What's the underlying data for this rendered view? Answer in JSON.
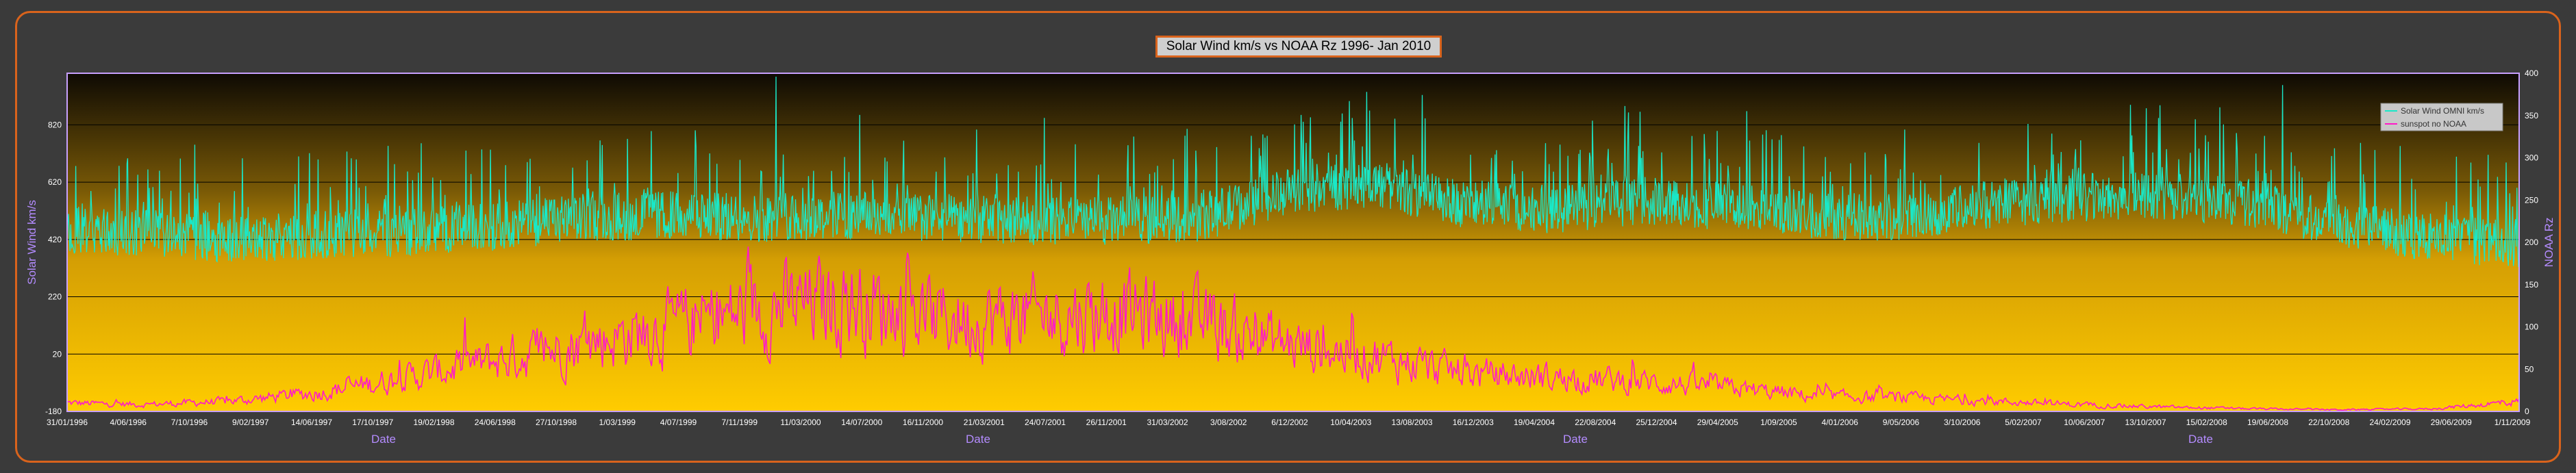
{
  "chart_data": {
    "type": "line",
    "title": "Solar Wind km/s vs NOAA Rz 1996- Jan 2010",
    "xlabel": "Date",
    "ylabel_left": "Solar Wind km/s",
    "ylabel_right": "NOAA Rz",
    "ylim_left": [
      -180,
      1000
    ],
    "ylim_right": [
      0,
      400
    ],
    "yticks_left": [
      "-180",
      "20",
      "220",
      "420",
      "620",
      "820"
    ],
    "yticks_right": [
      "0",
      "50",
      "100",
      "150",
      "200",
      "250",
      "300",
      "350",
      "400"
    ],
    "xticks": [
      "31/01/1996",
      "4/06/1996",
      "7/10/1996",
      "9/02/1997",
      "14/06/1997",
      "17/10/1997",
      "19/02/1998",
      "24/06/1998",
      "27/10/1998",
      "1/03/1999",
      "4/07/1999",
      "7/11/1999",
      "11/03/2000",
      "14/07/2000",
      "16/11/2000",
      "21/03/2001",
      "24/07/2001",
      "26/11/2001",
      "31/03/2002",
      "3/08/2002",
      "6/12/2002",
      "10/04/2003",
      "13/08/2003",
      "16/12/2003",
      "19/04/2004",
      "22/08/2004",
      "25/12/2004",
      "29/04/2005",
      "1/09/2005",
      "4/01/2006",
      "9/05/2006",
      "3/10/2006",
      "5/02/2007",
      "10/06/2007",
      "13/10/2007",
      "15/02/2008",
      "19/06/2008",
      "22/10/2008",
      "24/02/2009",
      "29/06/2009",
      "1/11/2009"
    ],
    "xlabel_positions_text": [
      "Date",
      "Date",
      "Date",
      "Date"
    ],
    "grid": true,
    "legend_position": "top-right",
    "series": [
      {
        "name": "Solar Wind OMNI km/s",
        "axis": "left",
        "color": "#19e8c8",
        "t": [
          1996.08,
          1996.5,
          1997.0,
          1997.5,
          1998.0,
          1998.5,
          1999.0,
          1999.5,
          2000.0,
          2000.5,
          2001.0,
          2001.5,
          2002.0,
          2002.5,
          2003.0,
          2003.5,
          2004.0,
          2004.5,
          2005.0,
          2005.5,
          2006.0,
          2006.5,
          2007.0,
          2007.5,
          2008.0,
          2008.5,
          2009.0,
          2009.5,
          2010.0
        ],
        "values": [
          430,
          420,
          400,
          410,
          420,
          440,
          470,
          480,
          470,
          480,
          470,
          460,
          460,
          470,
          560,
          590,
          520,
          500,
          530,
          510,
          480,
          470,
          520,
          540,
          550,
          520,
          450,
          400,
          380
        ]
      },
      {
        "name": "sunspot no NOAA",
        "axis": "right",
        "color": "#ff19c8",
        "t": [
          1996.08,
          1996.5,
          1997.0,
          1997.5,
          1998.0,
          1998.5,
          1999.0,
          1999.5,
          2000.0,
          2000.5,
          2001.0,
          2001.5,
          2002.0,
          2002.5,
          2003.0,
          2003.5,
          2004.0,
          2004.5,
          2005.0,
          2005.5,
          2006.0,
          2006.5,
          2007.0,
          2007.5,
          2008.0,
          2008.5,
          2009.0,
          2009.5,
          2010.0
        ],
        "values": [
          10,
          8,
          12,
          22,
          40,
          60,
          80,
          100,
          120,
          130,
          110,
          110,
          120,
          105,
          80,
          65,
          45,
          40,
          35,
          28,
          18,
          16,
          12,
          8,
          5,
          3,
          2,
          3,
          12
        ]
      }
    ]
  },
  "colors": {
    "background": "#3b3b3b",
    "frame_border": "#d9631c",
    "plot_top": "#0e0a04",
    "plot_mid": "#c8960a",
    "plot_bottom": "#ffcc00",
    "axis_border": "#c8a0ff",
    "axis_title": "#b48cff"
  }
}
